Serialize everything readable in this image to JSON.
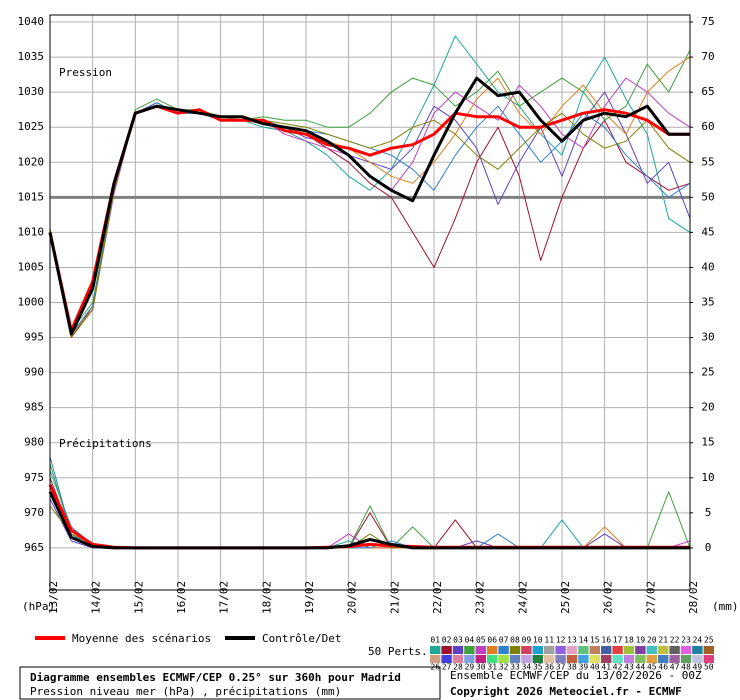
{
  "chart_data": {
    "type": "line",
    "annotations": {
      "pressure": "Pression",
      "precip": "Précipitations"
    },
    "y_label": "(hPa)",
    "y2_label": "(mm)",
    "x": [
      0,
      12,
      24,
      36,
      48,
      60,
      72,
      84,
      96,
      108,
      120,
      132,
      144,
      156,
      168,
      180,
      192,
      204,
      216,
      228,
      240,
      252,
      264,
      276,
      288,
      300,
      312,
      324,
      336,
      348,
      360
    ],
    "xlim": [
      0,
      360
    ],
    "xticks": [
      {
        "value": 0,
        "label": "13/02"
      },
      {
        "value": 24,
        "label": "14/02"
      },
      {
        "value": 48,
        "label": "15/02"
      },
      {
        "value": 72,
        "label": "16/02"
      },
      {
        "value": 96,
        "label": "17/02"
      },
      {
        "value": 120,
        "label": "18/02"
      },
      {
        "value": 144,
        "label": "19/02"
      },
      {
        "value": 168,
        "label": "20/02"
      },
      {
        "value": 192,
        "label": "21/02"
      },
      {
        "value": 216,
        "label": "22/02"
      },
      {
        "value": 240,
        "label": "23/02"
      },
      {
        "value": 264,
        "label": "24/02"
      },
      {
        "value": 288,
        "label": "25/02"
      },
      {
        "value": 312,
        "label": "26/02"
      },
      {
        "value": 336,
        "label": "27/02"
      },
      {
        "value": 360,
        "label": "28/02"
      }
    ],
    "ylim": [
      959,
      1041
    ],
    "yticks": [
      1040,
      1035,
      1030,
      1025,
      1020,
      1015,
      1010,
      1005,
      1000,
      995,
      990,
      985,
      980,
      975,
      970,
      965
    ],
    "y2lim": [
      -6,
      76
    ],
    "y2ticks": [
      75,
      70,
      65,
      60,
      55,
      50,
      45,
      40,
      35,
      30,
      25,
      20,
      15,
      10,
      5,
      0
    ],
    "reference_line": 1015,
    "grid": true,
    "series": [
      {
        "name": "Moyenne des scénarios",
        "color": "#ff0000",
        "width": 3,
        "values": [
          1010,
          996,
          1003,
          1017,
          1027,
          1028,
          1027,
          1027.5,
          1026,
          1026,
          1026,
          1024.5,
          1024,
          1022.5,
          1022,
          1021,
          1022,
          1022.5,
          1024,
          1027,
          1026.5,
          1026.5,
          1025,
          1025,
          1026,
          1027,
          1027.5,
          1027,
          1026,
          1024,
          1024
        ]
      },
      {
        "name": "Contrôle/Det",
        "color": "#000000",
        "width": 3,
        "values": [
          1010,
          995.5,
          1002,
          1017,
          1027,
          1028,
          1027.5,
          1027,
          1026.5,
          1026.5,
          1025.5,
          1025,
          1024.5,
          1023,
          1021,
          1018,
          1016,
          1014.5,
          1021,
          1027,
          1032,
          1029.5,
          1030,
          1026,
          1023,
          1026,
          1027,
          1026.5,
          1028,
          1024,
          1024
        ]
      },
      {
        "name": "01",
        "color": "#1fa89a",
        "width": 1,
        "values": [
          1010.5,
          995.5,
          999,
          1016,
          1027,
          1028.5,
          1027,
          1027.5,
          1026,
          1026,
          1025,
          1024.5,
          1023,
          1021,
          1018,
          1016,
          1019,
          1025,
          1031,
          1038,
          1034,
          1030,
          1028,
          1024,
          1021,
          1030,
          1035,
          1029,
          1024,
          1012,
          1010
        ]
      },
      {
        "name": "02",
        "color": "#a01030",
        "width": 1,
        "values": [
          1010.5,
          995,
          999.5,
          1016,
          1027,
          1028.5,
          1027,
          1027,
          1026,
          1026,
          1026,
          1025,
          1024,
          1022,
          1020,
          1017,
          1015,
          1010,
          1005,
          1012,
          1020,
          1025,
          1018,
          1006,
          1015,
          1022,
          1026,
          1020,
          1018,
          1016,
          1017
        ]
      },
      {
        "name": "03",
        "color": "#6040c0",
        "width": 1,
        "values": [
          1010.5,
          995.5,
          999,
          1016.5,
          1027,
          1028,
          1027,
          1027.5,
          1026,
          1026,
          1025.5,
          1025,
          1023.5,
          1023,
          1021,
          1020,
          1019,
          1022,
          1028,
          1026,
          1022,
          1014,
          1020,
          1025,
          1018,
          1026,
          1030,
          1024,
          1017,
          1020,
          1012
        ]
      },
      {
        "name": "04",
        "color": "#40a040",
        "width": 1,
        "values": [
          1010.5,
          996,
          1000,
          1016,
          1027.5,
          1029,
          1027.5,
          1027.5,
          1026.5,
          1026,
          1026.5,
          1026,
          1026,
          1025,
          1025,
          1027,
          1030,
          1032,
          1031,
          1028,
          1030,
          1033,
          1028,
          1030,
          1032,
          1030,
          1026,
          1028,
          1034,
          1030,
          1036
        ]
      },
      {
        "name": "05",
        "color": "#c040c0",
        "width": 1,
        "values": [
          1010.5,
          995,
          999,
          1015.5,
          1027,
          1028.5,
          1027,
          1027,
          1026,
          1026,
          1026,
          1024,
          1023,
          1022,
          1021,
          1018,
          1016,
          1020,
          1027,
          1030,
          1028,
          1026,
          1031,
          1028,
          1024,
          1022,
          1028,
          1032,
          1030,
          1027,
          1025
        ]
      },
      {
        "name": "06",
        "color": "#e08020",
        "width": 1,
        "values": [
          1010.5,
          995.5,
          999,
          1016,
          1027,
          1028,
          1027,
          1027.5,
          1026,
          1026,
          1025.5,
          1025,
          1024,
          1023,
          1022,
          1020,
          1018,
          1017,
          1020,
          1024,
          1029,
          1032,
          1027,
          1024,
          1028,
          1031,
          1027,
          1024,
          1030,
          1033,
          1035
        ]
      },
      {
        "name": "07",
        "color": "#3080d0",
        "width": 1,
        "values": [
          1010.5,
          995.5,
          999.5,
          1016,
          1027,
          1028.5,
          1027,
          1027,
          1026,
          1026,
          1026,
          1025,
          1024.5,
          1024,
          1023,
          1022,
          1021,
          1019,
          1016,
          1021,
          1025,
          1028,
          1024,
          1020,
          1023,
          1027,
          1025,
          1021,
          1018,
          1015,
          1017
        ]
      },
      {
        "name": "08",
        "color": "#808000",
        "width": 1,
        "values": [
          1010.5,
          995,
          999,
          1016,
          1027,
          1028,
          1027,
          1027.5,
          1026,
          1026,
          1026,
          1025.5,
          1025,
          1024,
          1023,
          1022,
          1023,
          1025,
          1026,
          1024,
          1021,
          1019,
          1022,
          1025,
          1027,
          1024,
          1022,
          1023,
          1026,
          1022,
          1020
        ]
      },
      {
        "name": "Moyenne des scénarios",
        "axis": "y2",
        "color": "#ff0000",
        "width": 3,
        "values": [
          9,
          2.5,
          0.5,
          0.1,
          0,
          0,
          0,
          0,
          0,
          0,
          0,
          0,
          0,
          0.1,
          0.2,
          0.5,
          0.3,
          0.2,
          0.1,
          0.1,
          0.1,
          0.1,
          0.1,
          0.1,
          0.1,
          0.1,
          0.1,
          0.1,
          0.1,
          0.1,
          0.1
        ]
      },
      {
        "name": "Contrôle/Det",
        "axis": "y2",
        "color": "#000000",
        "width": 3,
        "values": [
          8,
          1.5,
          0.2,
          0,
          0,
          0,
          0,
          0,
          0,
          0,
          0,
          0,
          0,
          0,
          0.3,
          1.2,
          0.5,
          0,
          0,
          0,
          0,
          0,
          0,
          0,
          0,
          0,
          0,
          0,
          0,
          0,
          0
        ]
      },
      {
        "name": "01",
        "axis": "y2",
        "color": "#1fa89a",
        "width": 1,
        "values": [
          11,
          3,
          0.5,
          0,
          0,
          0,
          0,
          0,
          0,
          0,
          0,
          0,
          0,
          0,
          1,
          0,
          0,
          0,
          0,
          0,
          0,
          0,
          0,
          0,
          4,
          0,
          0,
          0,
          0,
          0,
          0
        ]
      },
      {
        "name": "02",
        "axis": "y2",
        "color": "#a01030",
        "width": 1,
        "values": [
          10,
          2,
          0,
          0,
          0,
          0,
          0,
          0,
          0,
          0,
          0,
          0,
          0,
          0,
          0,
          5,
          0,
          0,
          0,
          4,
          0,
          0,
          0,
          0,
          0,
          0,
          0,
          0,
          0,
          0,
          0
        ]
      },
      {
        "name": "03",
        "axis": "y2",
        "color": "#6040c0",
        "width": 1,
        "values": [
          7,
          1,
          0,
          0,
          0,
          0,
          0,
          0,
          0,
          0,
          0,
          0,
          0,
          0,
          0,
          0,
          0,
          0,
          0,
          0,
          1,
          0,
          0,
          0,
          0,
          0,
          2,
          0,
          0,
          0,
          0
        ]
      },
      {
        "name": "04",
        "axis": "y2",
        "color": "#40a040",
        "width": 1,
        "values": [
          12,
          2,
          0.5,
          0,
          0,
          0,
          0,
          0,
          0,
          0,
          0,
          0,
          0,
          0,
          0,
          6,
          0,
          3,
          0,
          0,
          0,
          0,
          0,
          0,
          0,
          0,
          0,
          0,
          0,
          8,
          0
        ]
      },
      {
        "name": "05",
        "axis": "y2",
        "color": "#c040c0",
        "width": 1,
        "values": [
          9,
          3,
          0,
          0,
          0,
          0,
          0,
          0,
          0,
          0,
          0,
          0,
          0,
          0,
          2,
          0,
          0,
          0,
          0,
          0,
          0,
          0,
          0,
          0,
          0,
          0,
          0,
          0,
          0,
          0,
          1
        ]
      },
      {
        "name": "06",
        "axis": "y2",
        "color": "#e08020",
        "width": 1,
        "values": [
          8,
          1.5,
          0.5,
          0,
          0,
          0,
          0,
          0,
          0,
          0,
          0,
          0,
          0,
          0,
          0,
          0,
          0,
          0,
          0,
          0,
          0,
          0,
          0,
          0,
          0,
          0,
          3,
          0,
          0,
          0,
          0
        ]
      },
      {
        "name": "07",
        "axis": "y2",
        "color": "#3080d0",
        "width": 1,
        "values": [
          13,
          2,
          0,
          0,
          0,
          0,
          0,
          0,
          0,
          0,
          0,
          0,
          0,
          0,
          0,
          0,
          1,
          0,
          0,
          0,
          0,
          2,
          0,
          0,
          0,
          0,
          0,
          0,
          0,
          0,
          0
        ]
      },
      {
        "name": "08",
        "axis": "y2",
        "color": "#808000",
        "width": 1,
        "values": [
          6,
          2,
          0.5,
          0,
          0,
          0,
          0,
          0,
          0,
          0,
          0,
          0,
          0,
          0,
          0,
          2,
          0,
          0,
          0,
          0,
          0,
          0,
          0,
          0,
          0,
          0,
          0,
          0,
          0,
          0,
          0
        ]
      }
    ],
    "legend_count": "50 Perts.",
    "perturbation_keys": {
      "labels": [
        "01",
        "02",
        "03",
        "04",
        "05",
        "06",
        "07",
        "08",
        "09",
        "10",
        "11",
        "12",
        "13",
        "14",
        "15",
        "16",
        "17",
        "18",
        "19",
        "20",
        "21",
        "22",
        "23",
        "24",
        "25",
        "26",
        "27",
        "28",
        "29",
        "30",
        "31",
        "32",
        "33",
        "34",
        "35",
        "36",
        "37",
        "38",
        "39",
        "40",
        "41",
        "42",
        "43",
        "44",
        "45",
        "46",
        "47",
        "48",
        "49",
        "50"
      ],
      "colors": [
        "#1fa89a",
        "#a01030",
        "#6040c0",
        "#40a040",
        "#c040c0",
        "#e08020",
        "#3080d0",
        "#808000",
        "#d04060",
        "#20a0d0",
        "#a0a0a0",
        "#9060e0",
        "#e0a0c0",
        "#60c080",
        "#c08060",
        "#4060a0",
        "#e04040",
        "#a0c040",
        "#8040a0",
        "#40c0c0",
        "#c0c040",
        "#606060",
        "#e060e0",
        "#2080a0",
        "#a06020",
        "#d0a080",
        "#4040e0",
        "#e080a0",
        "#80a0e0",
        "#c02080",
        "#40e080",
        "#a0e040",
        "#6080c0",
        "#c0a0e0",
        "#208040",
        "#e0c0a0",
        "#8080c0",
        "#c06040",
        "#40a0e0",
        "#e0e060",
        "#a04060",
        "#60e0c0",
        "#c080e0",
        "#80c060",
        "#e0a040",
        "#4080c0",
        "#a060a0",
        "#60a060",
        "#c0c0e0",
        "#e04080"
      ]
    },
    "footer": {
      "title": "Diagramme ensembles ECMWF/CEP 0.25° sur 360h pour Madrid",
      "subtitle": "Pression niveau mer (hPa) , précipitations (mm)",
      "run": "Ensemble ECMWF/CEP du 13/02/2026 - 00Z",
      "copyright": "Copyright 2026 Meteociel.fr - ECMWF"
    }
  }
}
